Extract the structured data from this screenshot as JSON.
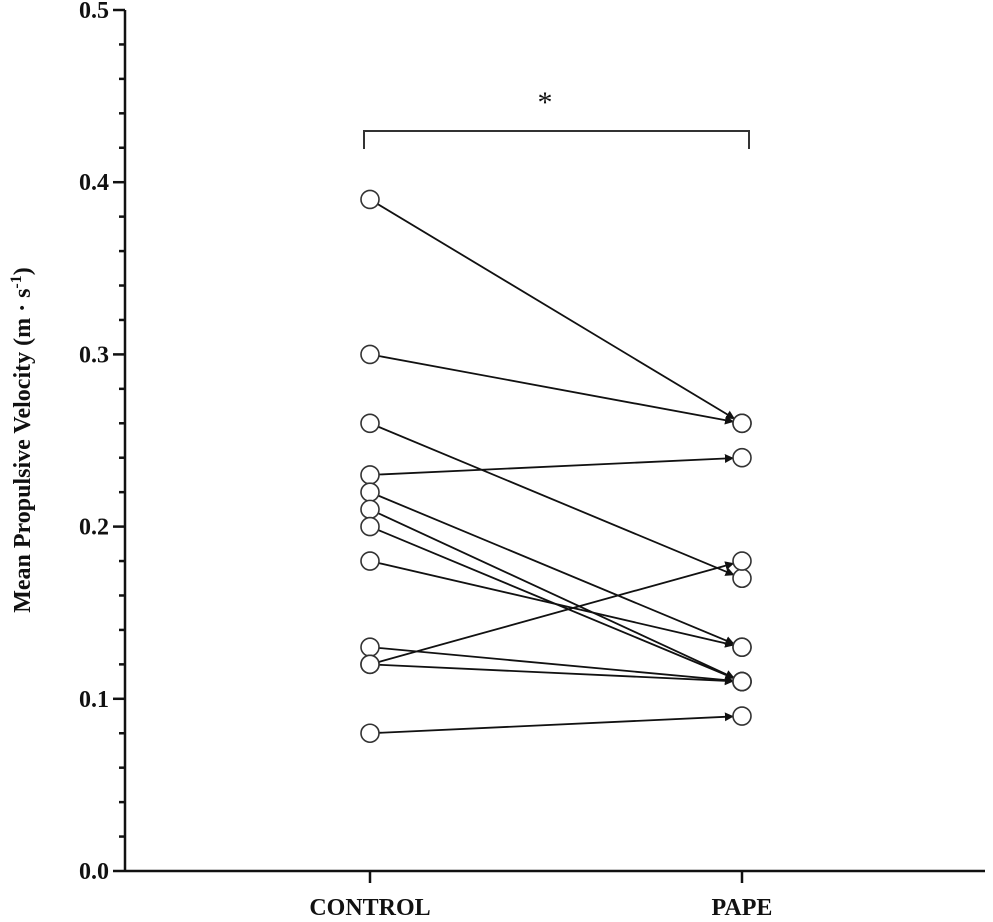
{
  "chart_data": {
    "type": "line",
    "title": "",
    "xlabel": "",
    "ylabel": "Mean Propulsive Velocity (m · s",
    "ylabel_superscript": "-1",
    "ylabel_close": ")",
    "categories": [
      "CONTROL",
      "PAPE"
    ],
    "ylim": [
      0.0,
      0.5
    ],
    "yticks": [
      "0.0",
      "0.1",
      "0.2",
      "0.3",
      "0.4",
      "0.5"
    ],
    "grid": false,
    "legend": "none",
    "significance": {
      "marker": "*",
      "between": [
        "CONTROL",
        "PAPE"
      ]
    },
    "pairs": [
      {
        "control": 0.39,
        "pape": 0.26
      },
      {
        "control": 0.3,
        "pape": 0.26
      },
      {
        "control": 0.26,
        "pape": 0.17
      },
      {
        "control": 0.23,
        "pape": 0.24
      },
      {
        "control": 0.22,
        "pape": 0.13
      },
      {
        "control": 0.21,
        "pape": 0.11
      },
      {
        "control": 0.2,
        "pape": 0.11
      },
      {
        "control": 0.18,
        "pape": 0.13
      },
      {
        "control": 0.13,
        "pape": 0.11
      },
      {
        "control": 0.12,
        "pape": 0.18
      },
      {
        "control": 0.12,
        "pape": 0.11
      },
      {
        "control": 0.08,
        "pape": 0.09
      }
    ],
    "colors": {
      "line": "#111111",
      "marker_fill": "#ffffff"
    }
  }
}
